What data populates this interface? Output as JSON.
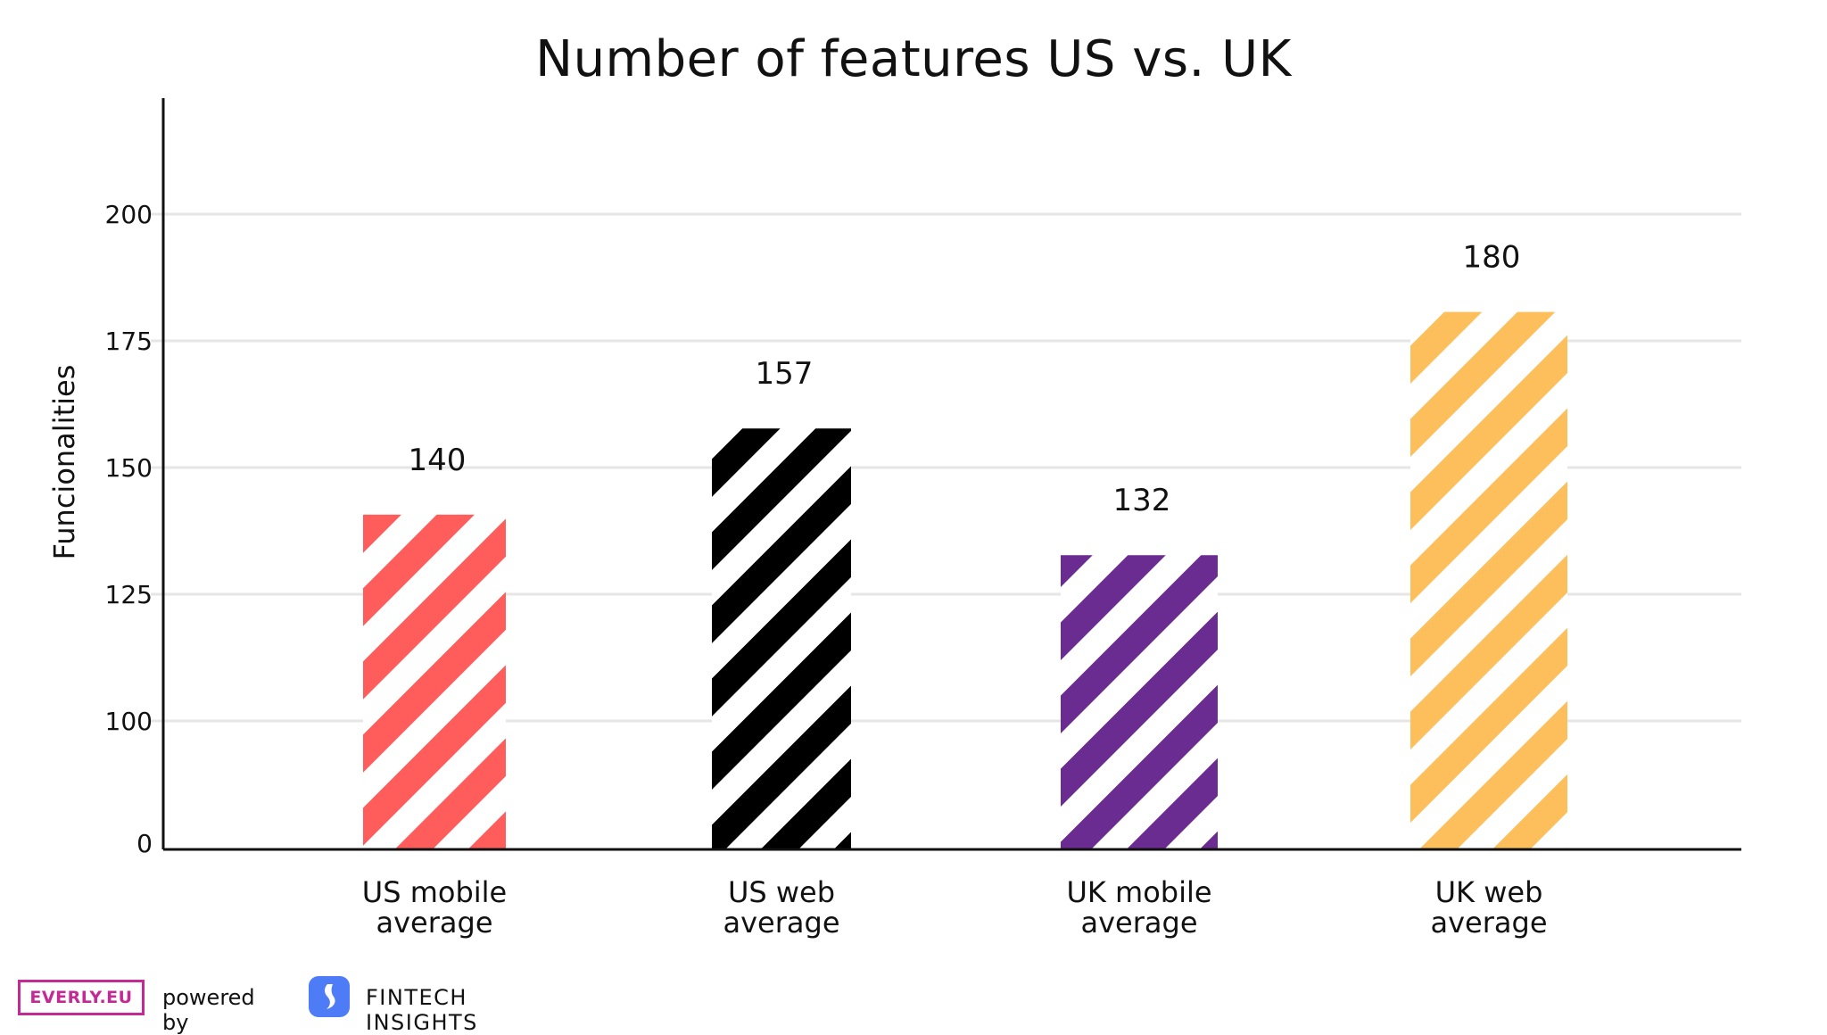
{
  "chart_data": {
    "type": "bar",
    "title": "Number of features US vs. UK",
    "ylabel": "Funcionalities",
    "xlabel": "",
    "categories": [
      [
        "US mobile",
        "average"
      ],
      [
        "US web",
        "average"
      ],
      [
        "UK mobile",
        "average"
      ],
      [
        "UK web",
        "average"
      ]
    ],
    "values": [
      140,
      157,
      132,
      180
    ],
    "data_labels": [
      "140",
      "157",
      "132",
      "180"
    ],
    "y_ticks": [
      {
        "label": "0",
        "value": 0
      },
      {
        "label": "100",
        "value": 100
      },
      {
        "label": "125",
        "value": 125
      },
      {
        "label": "150",
        "value": 150
      },
      {
        "label": "175",
        "value": 175
      },
      {
        "label": "200",
        "value": 200
      }
    ],
    "ylim_display": [
      0,
      225
    ],
    "grid": true,
    "bar_pattern": "diagonal-stripes",
    "colors": [
      "#ff5c5c",
      "#000000",
      "#6a2c91",
      "#fcbf5c"
    ]
  },
  "footer": {
    "everly_logo_text": "EVERLY.EU",
    "powered_by": "powered by",
    "partner_name": "FINTECH INSIGHTS",
    "partner_icon": "fintech-insights-icon",
    "everly_color": "#c42a93",
    "partner_icon_color": "#4e7cf6"
  }
}
